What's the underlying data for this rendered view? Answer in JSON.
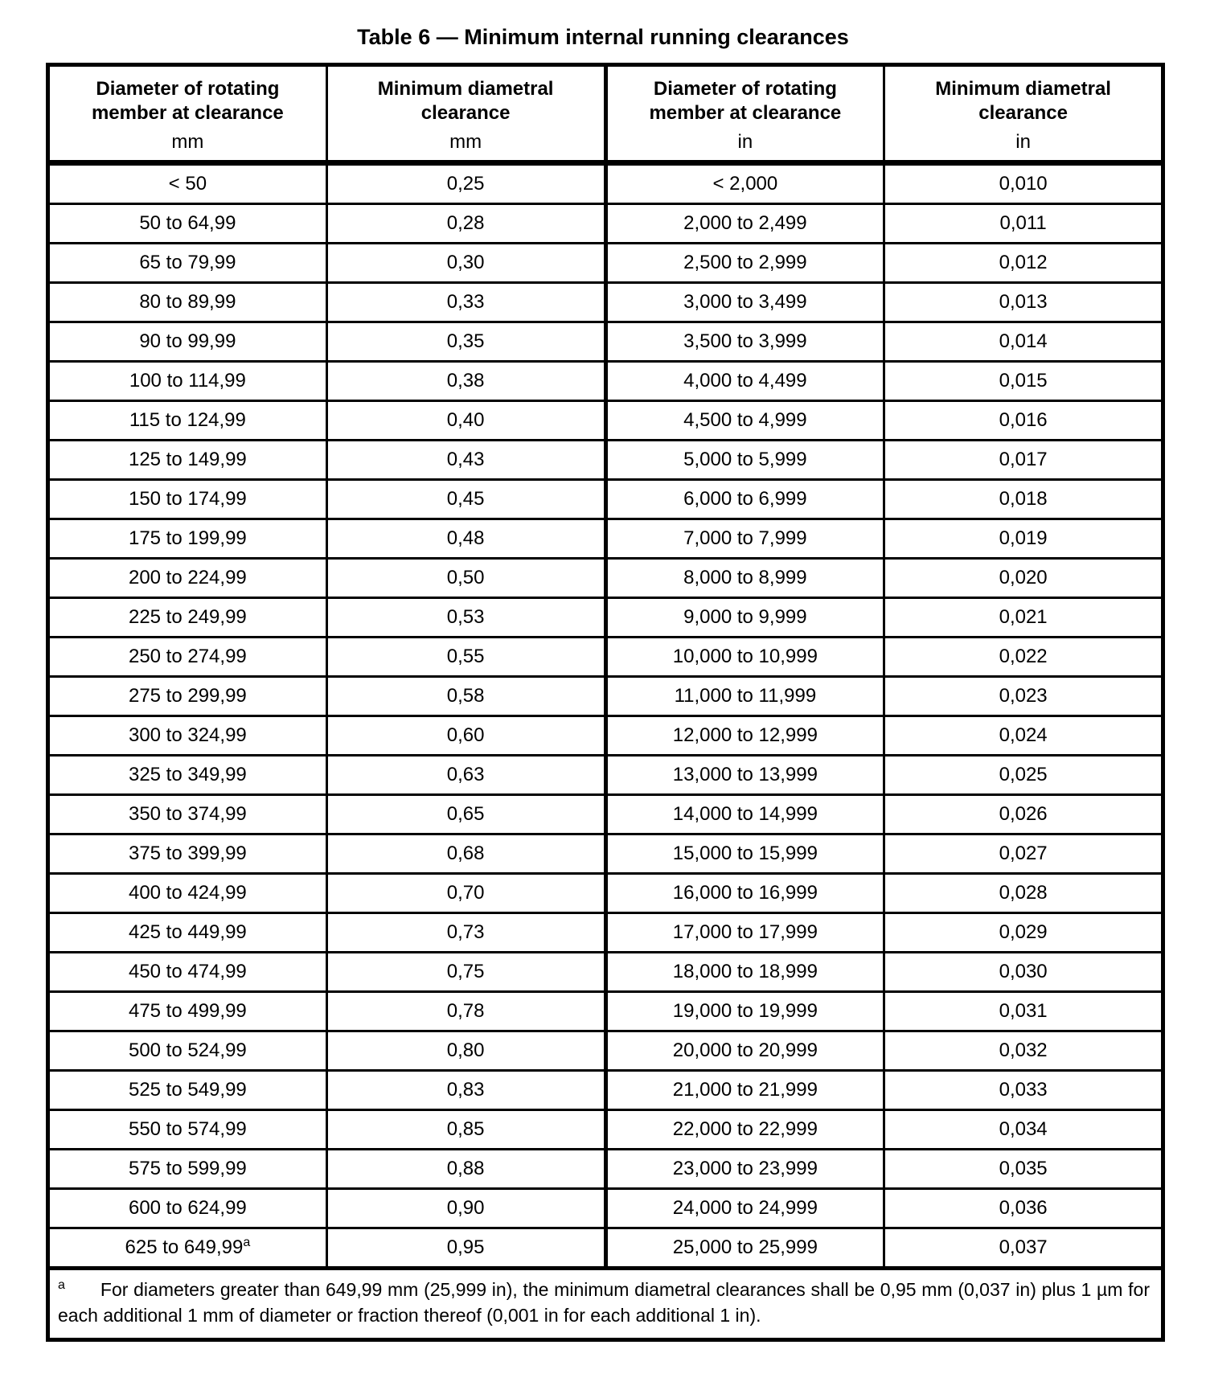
{
  "title": "Table 6 — Minimum internal running clearances",
  "table": {
    "columns": [
      {
        "label": "Diameter of rotating member at clearance",
        "unit": "mm"
      },
      {
        "label": "Minimum diametral clearance",
        "unit": "mm"
      },
      {
        "label": "Diameter of rotating member at clearance",
        "unit": "in"
      },
      {
        "label": "Minimum diametral clearance",
        "unit": "in"
      }
    ],
    "rows": [
      [
        "< 50",
        "0,25",
        "< 2,000",
        "0,010"
      ],
      [
        "50 to 64,99",
        "0,28",
        "2,000 to 2,499",
        "0,011"
      ],
      [
        "65 to 79,99",
        "0,30",
        "2,500 to 2,999",
        "0,012"
      ],
      [
        "80 to 89,99",
        "0,33",
        "3,000 to 3,499",
        "0,013"
      ],
      [
        "90 to 99,99",
        "0,35",
        "3,500 to 3,999",
        "0,014"
      ],
      [
        "100 to 114,99",
        "0,38",
        "4,000 to 4,499",
        "0,015"
      ],
      [
        "115 to 124,99",
        "0,40",
        "4,500 to 4,999",
        "0,016"
      ],
      [
        "125 to 149,99",
        "0,43",
        "5,000 to 5,999",
        "0,017"
      ],
      [
        "150 to 174,99",
        "0,45",
        "6,000 to 6,999",
        "0,018"
      ],
      [
        "175 to 199,99",
        "0,48",
        "7,000 to 7,999",
        "0,019"
      ],
      [
        "200 to 224,99",
        "0,50",
        "8,000 to 8,999",
        "0,020"
      ],
      [
        "225 to 249,99",
        "0,53",
        "9,000 to 9,999",
        "0,021"
      ],
      [
        "250 to 274,99",
        "0,55",
        "10,000 to 10,999",
        "0,022"
      ],
      [
        "275 to 299,99",
        "0,58",
        "11,000 to 11,999",
        "0,023"
      ],
      [
        "300 to 324,99",
        "0,60",
        "12,000 to 12,999",
        "0,024"
      ],
      [
        "325 to 349,99",
        "0,63",
        "13,000 to 13,999",
        "0,025"
      ],
      [
        "350 to 374,99",
        "0,65",
        "14,000 to 14,999",
        "0,026"
      ],
      [
        "375 to 399,99",
        "0,68",
        "15,000 to 15,999",
        "0,027"
      ],
      [
        "400 to 424,99",
        "0,70",
        "16,000 to 16,999",
        "0,028"
      ],
      [
        "425 to 449,99",
        "0,73",
        "17,000 to 17,999",
        "0,029"
      ],
      [
        "450 to 474,99",
        "0,75",
        "18,000 to 18,999",
        "0,030"
      ],
      [
        "475 to 499,99",
        "0,78",
        "19,000 to 19,999",
        "0,031"
      ],
      [
        "500 to 524,99",
        "0,80",
        "20,000 to 20,999",
        "0,032"
      ],
      [
        "525 to 549,99",
        "0,83",
        "21,000 to 21,999",
        "0,033"
      ],
      [
        "550 to 574,99",
        "0,85",
        "22,000 to 22,999",
        "0,034"
      ],
      [
        "575 to 599,99",
        "0,88",
        "23,000 to 23,999",
        "0,035"
      ],
      [
        "600 to 624,99",
        "0,90",
        "24,000 to 24,999",
        "0,036"
      ],
      [
        "625 to 649,99^a",
        "0,95",
        "25,000 to 25,999",
        "0,037"
      ]
    ],
    "footnote": {
      "marker": "a",
      "text": "For diameters greater than 649,99 mm (25,999 in), the minimum diametral clearances shall be 0,95 mm (0,037 in) plus 1 µm for each additional 1 mm of diameter or fraction thereof (0,001 in for each additional 1 in)."
    }
  }
}
